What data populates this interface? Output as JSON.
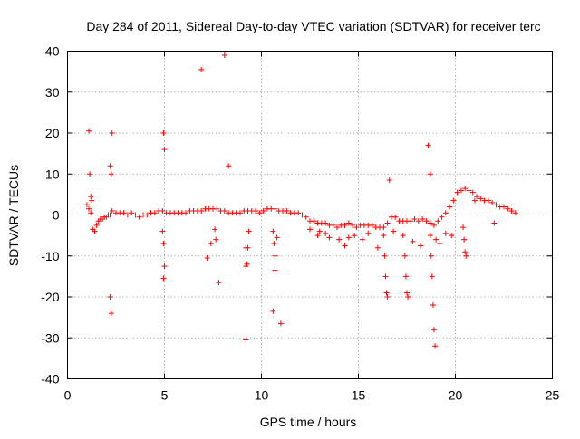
{
  "chart_data": {
    "type": "scatter",
    "title": "Day 284 of 2011, Sidereal Day-to-day VTEC variation (SDTVAR) for receiver terc",
    "xlabel": "GPS time / hours",
    "ylabel": "SDTVAR / TECUs",
    "xlim": [
      0,
      25
    ],
    "ylim": [
      -40,
      40
    ],
    "xticks": [
      0,
      5,
      10,
      15,
      20,
      25
    ],
    "yticks": [
      -40,
      -30,
      -20,
      -10,
      0,
      10,
      20,
      30,
      40
    ],
    "xtick_labels": [
      "0",
      "5",
      "10",
      "15",
      "20",
      "25"
    ],
    "ytick_labels": [
      "-40",
      "-30",
      "-20",
      "-10",
      "0",
      "10",
      "20",
      "30",
      "40"
    ],
    "grid": true,
    "marker": "+",
    "color": "#ff0000",
    "series": [
      {
        "name": "terc",
        "x": [
          1.0,
          1.1,
          1.2,
          1.3,
          1.4,
          1.5,
          1.6,
          1.7,
          1.8,
          1.9,
          2.0,
          2.1,
          2.2,
          2.3,
          2.5,
          2.7,
          2.9,
          3.1,
          3.3,
          3.5,
          3.7,
          3.9,
          4.1,
          4.3,
          4.5,
          4.7,
          4.9,
          5.1,
          5.3,
          5.5,
          5.7,
          5.9,
          6.1,
          6.3,
          6.5,
          6.7,
          6.9,
          7.1,
          7.3,
          7.5,
          7.7,
          7.9,
          8.1,
          8.3,
          8.5,
          8.7,
          8.9,
          9.1,
          9.3,
          9.5,
          9.7,
          9.9,
          10.1,
          10.3,
          10.5,
          10.7,
          10.9,
          11.1,
          11.3,
          11.5,
          11.7,
          11.9,
          12.1,
          12.3,
          12.5,
          12.7,
          12.9,
          13.1,
          13.3,
          13.5,
          13.7,
          13.9,
          14.1,
          14.3,
          14.5,
          14.7,
          14.9,
          15.1,
          15.3,
          15.5,
          15.7,
          15.9,
          16.1,
          16.3,
          16.5,
          16.7,
          16.9,
          17.1,
          17.3,
          17.5,
          17.7,
          17.9,
          18.1,
          18.3,
          18.5,
          18.7,
          18.9,
          19.1,
          19.3,
          19.5,
          19.7,
          19.9,
          20.1,
          20.3,
          20.5,
          20.7,
          20.9,
          21.1,
          21.3,
          21.5,
          21.7,
          21.9,
          22.1,
          22.3,
          22.5,
          22.7,
          22.9,
          23.1,
          1.1,
          1.15,
          1.2,
          1.25,
          2.2,
          2.25,
          2.3,
          4.95,
          5.0,
          6.9,
          8.1,
          8.3,
          7.8,
          7.2,
          9.2,
          10.6,
          11.0,
          10.7,
          16.6,
          18.6,
          18.7,
          2.2,
          2.25,
          4.95,
          9.2,
          7.4,
          5.0,
          10.7,
          10.8,
          14.3,
          16.3,
          16.35,
          16.4,
          16.45,
          16.5,
          17.3,
          17.4,
          17.45,
          17.5,
          17.55,
          18.7,
          18.75,
          18.8,
          18.85,
          18.9,
          18.95,
          20.4,
          20.45,
          20.5,
          20.55,
          9.2,
          9.25,
          9.3,
          9.35,
          10.6,
          10.65,
          4.9,
          4.95,
          7.6,
          7.65,
          12.5,
          12.9,
          13.5,
          14.0,
          14.5,
          15.5,
          16.0,
          19.5,
          21.0,
          22.0,
          13.0,
          13.3,
          14.8,
          15.2,
          16.8,
          17.8,
          18.2,
          19.0,
          19.2,
          19.8
        ],
        "y": [
          2.5,
          1.5,
          0.5,
          -3.5,
          -4.0,
          -2.5,
          -1.5,
          -1.0,
          -1.0,
          -0.5,
          -0.5,
          0.0,
          0.0,
          1.0,
          0.5,
          0.5,
          0.5,
          0.0,
          0.5,
          0.0,
          -0.5,
          0.0,
          0.0,
          0.5,
          0.5,
          1.0,
          1.0,
          0.5,
          0.5,
          0.5,
          0.5,
          0.5,
          0.5,
          1.0,
          1.0,
          1.0,
          1.0,
          1.5,
          1.5,
          1.5,
          1.5,
          1.0,
          1.0,
          0.5,
          0.5,
          0.5,
          0.5,
          1.0,
          1.0,
          1.0,
          1.0,
          0.5,
          1.0,
          1.5,
          1.5,
          1.5,
          1.0,
          1.0,
          1.0,
          0.5,
          0.5,
          0.5,
          0.0,
          -0.5,
          -1.5,
          -1.5,
          -2.0,
          -2.0,
          -2.0,
          -2.5,
          -2.5,
          -3.0,
          -2.5,
          -2.5,
          -2.0,
          -2.5,
          -3.0,
          -2.5,
          -2.5,
          -2.5,
          -2.5,
          -3.0,
          -3.0,
          -3.0,
          -2.0,
          -0.5,
          -0.5,
          -1.5,
          -1.5,
          -1.5,
          -1.5,
          -1.0,
          -1.5,
          -1.0,
          -1.5,
          -2.0,
          -2.5,
          -1.5,
          -0.5,
          0.5,
          2.0,
          3.5,
          5.5,
          6.0,
          6.5,
          6.0,
          5.5,
          4.5,
          4.0,
          3.5,
          3.5,
          3.0,
          2.5,
          2.0,
          2.0,
          1.5,
          1.0,
          0.5,
          20.5,
          10.0,
          4.5,
          3.5,
          12.0,
          10.0,
          20.0,
          20.0,
          16.0,
          35.5,
          39.0,
          12.0,
          -16.5,
          -10.5,
          -30.5,
          -23.5,
          -26.5,
          -13.5,
          8.5,
          17.0,
          10.0,
          -20.0,
          -24.0,
          -15.5,
          -12.5,
          -7.0,
          -12.5,
          -10.0,
          -5.5,
          -7.5,
          -5.0,
          -10.0,
          -15.0,
          -19.0,
          -20.0,
          -5.0,
          -10.0,
          -15.0,
          -19.0,
          -20.0,
          -5.0,
          -10.0,
          -15.0,
          -22.0,
          -28.0,
          -32.0,
          -3.0,
          -6.0,
          -9.0,
          -10.0,
          -8.0,
          -12.0,
          -8.0,
          -4.0,
          -4.0,
          -7.0,
          -4.0,
          -7.0,
          -3.5,
          -6.0,
          -3.5,
          -5.0,
          -5.5,
          -6.0,
          -5.5,
          -4.5,
          -8.0,
          -4.5,
          3.5,
          -2.0,
          -4.0,
          -4.5,
          -5.0,
          -6.0,
          -4.0,
          -6.5,
          -7.5,
          -6.0,
          -7.0,
          -5.0
        ]
      }
    ]
  }
}
